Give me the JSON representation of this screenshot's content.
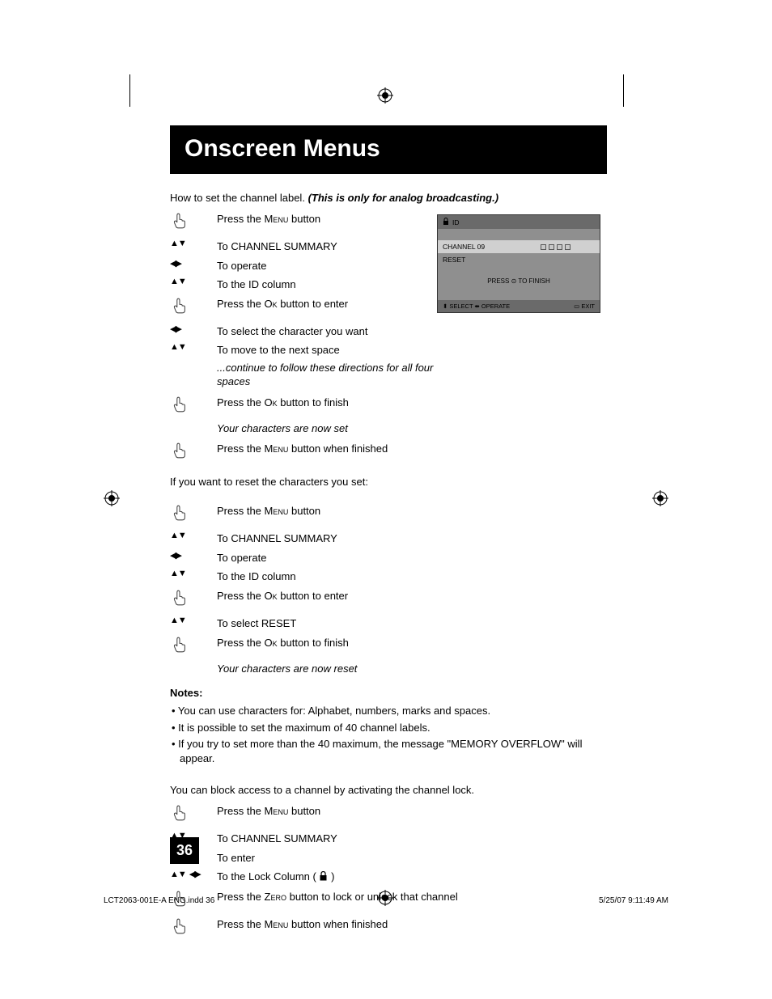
{
  "page": {
    "title": "Onscreen Menus",
    "page_number": "36",
    "footer_left": "LCT2063-001E-A ENG.indd   36",
    "footer_right": "5/25/07   9:11:49 AM"
  },
  "intro": {
    "lead": "How to set the channel label.  ",
    "ital": "(This is only for analog broadcasting.)"
  },
  "steps1": [
    {
      "icon": "hand",
      "text": "Press the ",
      "sc": "Menu",
      "tail": " button"
    },
    {
      "icon": "ud",
      "text": "To CHANNEL SUMMARY"
    },
    {
      "icon": "lr",
      "text": "To operate"
    },
    {
      "icon": "ud",
      "text": "To the ID column"
    },
    {
      "icon": "hand",
      "text": "Press the ",
      "sc": "Ok",
      "tail": " button to enter"
    },
    {
      "icon": "lr",
      "text": "To select the character you want"
    },
    {
      "icon": "ud",
      "text": "To move to the next space"
    }
  ],
  "cont1": "...continue to follow these directions for all four spaces",
  "steps1b": [
    {
      "icon": "hand",
      "text": "Press the ",
      "sc": "Ok",
      "tail": " button to finish"
    }
  ],
  "set_msg": "Your characters are now set",
  "steps1c": [
    {
      "icon": "hand",
      "text": "Press the ",
      "sc": "Menu",
      "tail": " button when finished"
    }
  ],
  "reset_intro": "If you want to reset the characters you set:",
  "steps2": [
    {
      "icon": "hand",
      "text": "Press the ",
      "sc": "Menu",
      "tail": " button"
    },
    {
      "icon": "ud",
      "text": "To CHANNEL SUMMARY"
    },
    {
      "icon": "lr",
      "text": "To operate"
    },
    {
      "icon": "ud",
      "text": "To the ID column"
    },
    {
      "icon": "hand",
      "text": "Press the ",
      "sc": "Ok",
      "tail": " button to enter"
    },
    {
      "icon": "ud",
      "text": "To select RESET"
    },
    {
      "icon": "hand",
      "text": "Press the ",
      "sc": "Ok",
      "tail": " button to finish"
    }
  ],
  "reset_msg": "Your characters are now reset",
  "notes_heading": "Notes:",
  "notes": [
    "You can use characters for: Alphabet, numbers, marks and spaces.",
    "It is possible to set the maximum of 40 channel labels.",
    "If you try to set more than the 40 maximum, the message \"MEMORY OVERFLOW\" will appear."
  ],
  "lock_intro": "You can block access to a channel by activating the channel lock.",
  "steps3": [
    {
      "icon": "hand",
      "text": "Press the ",
      "sc": "Menu",
      "tail": " button"
    },
    {
      "icon": "ud",
      "text": "To CHANNEL SUMMARY"
    },
    {
      "icon": "lr",
      "text": "To enter"
    },
    {
      "icon": "udlr",
      "text": "To the Lock Column ( ",
      "lock": true,
      "tail2": " )"
    },
    {
      "icon": "hand",
      "text": "Press the ",
      "sc": "Zero",
      "tail": " button to lock or unlock that channel"
    },
    {
      "icon": "hand",
      "text": "Press the ",
      "sc": "Menu",
      "tail": " button when finished"
    }
  ],
  "osd": {
    "title": "ID",
    "channel": "CHANNEL 09",
    "reset": "RESET",
    "press": "PRESS ⊙ TO FINISH",
    "footer_left": "⬍ SELECT ⬌ OPERATE",
    "footer_right": "▭ EXIT"
  },
  "style": {
    "title_bg": "#000000",
    "title_color": "#ffffff",
    "body_color": "#000000",
    "osd_bg": "#8f8f8f",
    "osd_header_bg": "#6a6a6a",
    "title_fontsize": 30,
    "body_fontsize": 13,
    "osd_fontsize": 8.5
  }
}
